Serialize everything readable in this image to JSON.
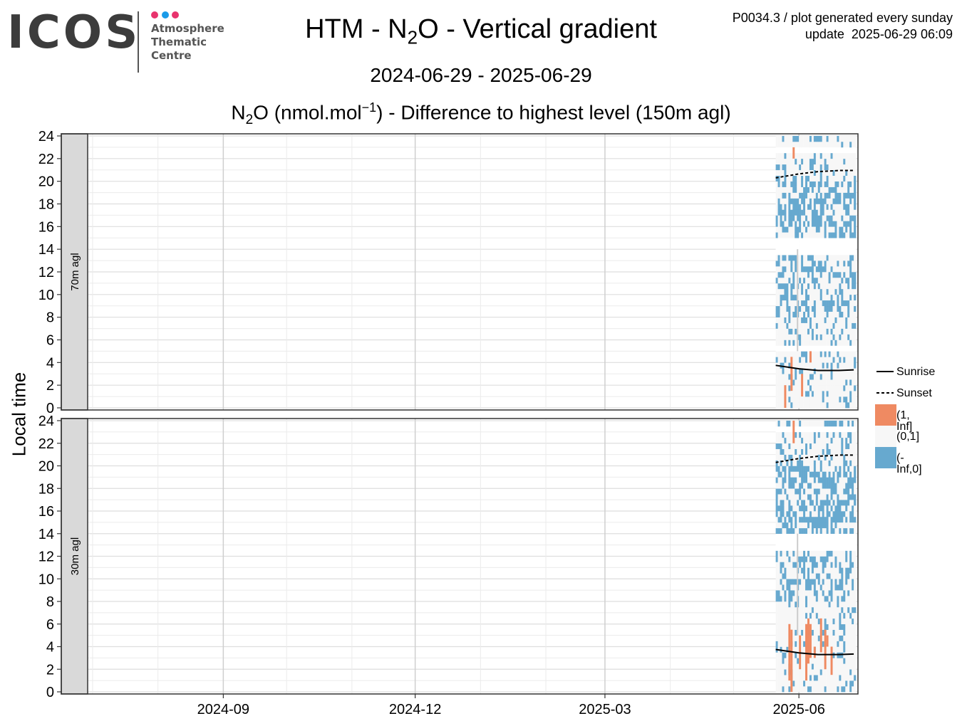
{
  "logo": {
    "wordmark": "ICOS",
    "line1": "Atmosphere",
    "line2": "Thematic",
    "line3": "Centre",
    "dot_colors": [
      "#e8336d",
      "#1a9be8",
      "#e8336d"
    ]
  },
  "header": {
    "title_pre": "HTM - N",
    "title_sub": "2",
    "title_post": "O - Vertical gradient",
    "date_range": "2024-06-29 - 2025-06-29",
    "subtitle_pre": "N",
    "subtitle_sub": "2",
    "subtitle_mid": "O (nmol.mol",
    "subtitle_sup": "−1",
    "subtitle_post": ") - Difference to highest level (150m agl)",
    "meta_line1": "P0034.3 / plot generated every sunday",
    "meta_line2": "update  2025-06-29 06:09"
  },
  "chart_data": {
    "type": "heatmap",
    "ylabel": "Local time",
    "xlim": [
      "2024-06-29",
      "2025-06-29"
    ],
    "ylim": [
      0,
      24
    ],
    "x_ticks": [
      "2024-09",
      "2024-12",
      "2025-03",
      "2025-06"
    ],
    "y_ticks": [
      "0",
      "2",
      "4",
      "6",
      "8",
      "10",
      "12",
      "14",
      "16",
      "18",
      "20",
      "22",
      "24"
    ],
    "grid": true,
    "legend_position": "right",
    "colors": {
      "pos": "#ef8a62",
      "mid": "#f7f7f7",
      "neg": "#67a9cf",
      "gap": "#cccccc"
    },
    "legend": {
      "lines": [
        {
          "label": "Sunrise",
          "style": "solid"
        },
        {
          "label": "Sunset",
          "style": "dashed"
        }
      ],
      "fills": [
        {
          "label": "(1, Inf]",
          "key": "pos"
        },
        {
          "label": "(0,1]",
          "key": "mid"
        },
        {
          "label": "(-Inf,0]",
          "key": "neg"
        }
      ]
    },
    "data_start": "2025-05-21",
    "data_end": "2025-06-27",
    "sunrise": [
      [
        "2025-05-21",
        3.75
      ],
      [
        "2025-06-01",
        3.45
      ],
      [
        "2025-06-10",
        3.3
      ],
      [
        "2025-06-20",
        3.3
      ],
      [
        "2025-06-27",
        3.35
      ]
    ],
    "sunset": [
      [
        "2025-05-21",
        20.3
      ],
      [
        "2025-06-01",
        20.65
      ],
      [
        "2025-06-10",
        20.85
      ],
      [
        "2025-06-20",
        20.95
      ],
      [
        "2025-06-27",
        20.95
      ]
    ],
    "panels": [
      {
        "label": "70m agl",
        "seed": 7,
        "gaps": [
          [
            13.5,
            14.8
          ],
          [
            5.0,
            5.4
          ],
          [
            22.5,
            22.8
          ]
        ],
        "pos_cells": [
          [
            "2025-05-25",
            0.0,
            2.0
          ],
          [
            "2025-05-28",
            1.5,
            4.5
          ],
          [
            "2025-05-29",
            22.0,
            23.0
          ],
          [
            "2025-06-02",
            1.0,
            3.0
          ],
          [
            "2025-06-06",
            4.0,
            5.0
          ]
        ]
      },
      {
        "label": "30m agl",
        "seed": 13,
        "gaps": [
          [
            12.5,
            13.9
          ],
          [
            23.0,
            23.3
          ]
        ],
        "pos_cells": [
          [
            "2025-05-27",
            1.0,
            6.0
          ],
          [
            "2025-05-28",
            0.0,
            5.5
          ],
          [
            "2025-05-29",
            22.0,
            24.0
          ],
          [
            "2025-06-01",
            2.0,
            5.0
          ],
          [
            "2025-06-04",
            1.0,
            6.0
          ],
          [
            "2025-06-05",
            2.5,
            6.5
          ],
          [
            "2025-06-06",
            3.0,
            6.0
          ],
          [
            "2025-06-08",
            3.0,
            4.0
          ],
          [
            "2025-06-11",
            3.5,
            6.5
          ],
          [
            "2025-06-13",
            2.0,
            5.5
          ],
          [
            "2025-06-14",
            4.0,
            5.0
          ],
          [
            "2025-06-16",
            1.5,
            4.0
          ]
        ]
      }
    ]
  }
}
